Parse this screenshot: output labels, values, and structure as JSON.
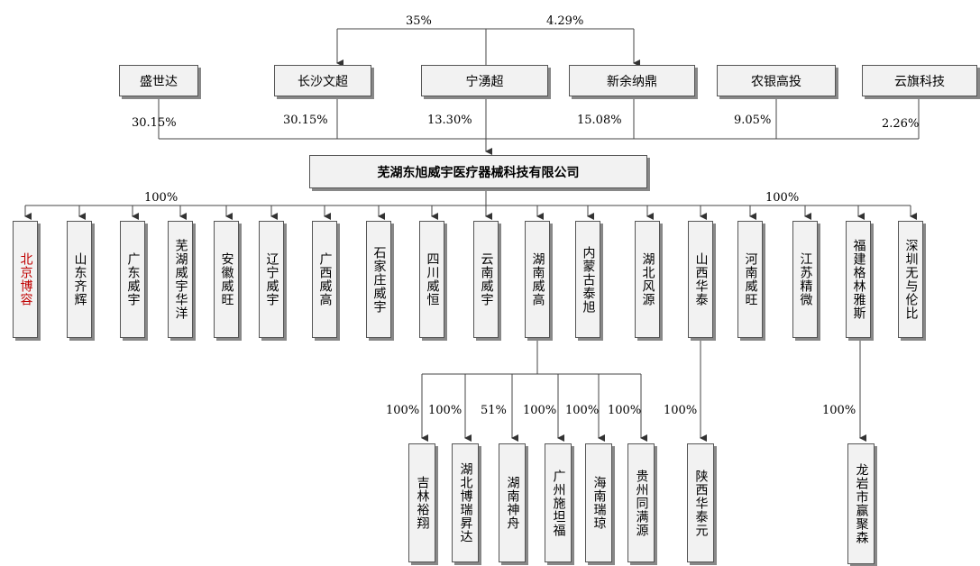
{
  "shareholders": [
    {
      "name": "盛世达",
      "share": "30.15%"
    },
    {
      "name": "长沙文超",
      "share": "30.15%"
    },
    {
      "name": "宁湧超",
      "share": "13.30%"
    },
    {
      "name": "新余纳鼎",
      "share": "15.08%"
    },
    {
      "name": "农银高投",
      "share": "9.05%"
    },
    {
      "name": "云旗科技",
      "share": "2.26%"
    }
  ],
  "cross_holding": {
    "left": "35%",
    "right": "4.29%"
  },
  "company": "芜湖东旭威宇医疗器械科技有限公司",
  "subsidiary_share_left": "100%",
  "subsidiary_share_right": "100%",
  "subsidiaries": [
    "北京博容",
    "山东齐辉",
    "广东威宇",
    "芜湖威宇华洋",
    "安徽威旺",
    "辽宁威宇",
    "广西威高",
    "石家庄威宇",
    "四川威恒",
    "云南威宇",
    "湖南威高",
    "内蒙古泰旭",
    "湖北风源",
    "山西华泰",
    "河南威旺",
    "江苏精微",
    "福建格林雅斯",
    "深圳无与伦比"
  ],
  "hunan_children": [
    {
      "name": "吉林裕翔",
      "share": "100%"
    },
    {
      "name": "湖北博瑞昇达",
      "share": "100%"
    },
    {
      "name": "湖南神舟",
      "share": "51%"
    },
    {
      "name": "广州施坦福",
      "share": "100%"
    },
    {
      "name": "海南瑞琼",
      "share": "100%"
    },
    {
      "name": "贵州同满源",
      "share": "100%"
    }
  ],
  "shanxi_child": {
    "name": "陕西华泰元",
    "share": "100%"
  },
  "fujian_child": {
    "name": "龙岩市赢聚森",
    "share": "100%"
  }
}
